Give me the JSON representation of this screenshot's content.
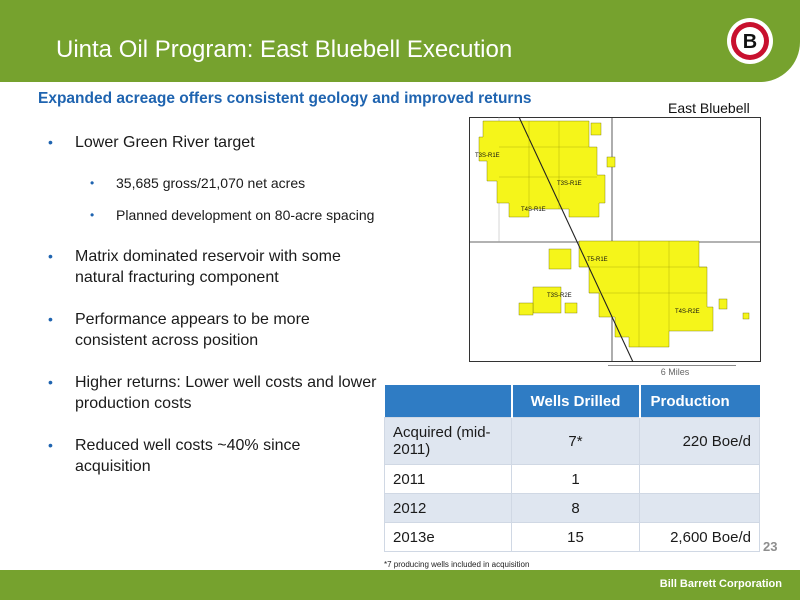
{
  "header": {
    "title": "Uinta Oil Program: East Bluebell Execution",
    "logo_letter": "B"
  },
  "subtitle": "Expanded acreage offers consistent geology and improved returns",
  "map": {
    "label": "East Bluebell",
    "scale": "6 Miles",
    "township_labels": [
      "T3S-R1E",
      "T3S-R2E",
      "T4S-R1E",
      "T4S-R2E",
      "T5-R1E",
      "T3S-R1E"
    ]
  },
  "bullets": [
    {
      "level": 1,
      "text": "Lower Green River target"
    },
    {
      "level": 2,
      "text": "35,685 gross/21,070 net acres"
    },
    {
      "level": 2,
      "text": "Planned development on 80-acre spacing"
    },
    {
      "level": 1,
      "text": "Matrix dominated reservoir with some natural fracturing component"
    },
    {
      "level": 1,
      "text": "Performance appears to be more consistent across position"
    },
    {
      "level": 1,
      "text": "Higher returns: Lower well costs and lower production costs"
    },
    {
      "level": 1,
      "text": "Reduced well costs ~40% since acquisition"
    }
  ],
  "table": {
    "headers": [
      "",
      "Wells Drilled",
      "Production"
    ],
    "rows": [
      [
        "Acquired (mid-2011)",
        "7*",
        "220 Boe/d"
      ],
      [
        "2011",
        "1",
        ""
      ],
      [
        "2012",
        "8",
        ""
      ],
      [
        "2013e",
        "15",
        "2,600 Boe/d"
      ]
    ]
  },
  "footnote": "*7 producing wells included in acquisition",
  "page_number": "23",
  "footer": "Bill Barrett Corporation",
  "colors": {
    "green": "#76a22e",
    "blue": "#2f7cc4",
    "acreage": "#f5f51a"
  }
}
